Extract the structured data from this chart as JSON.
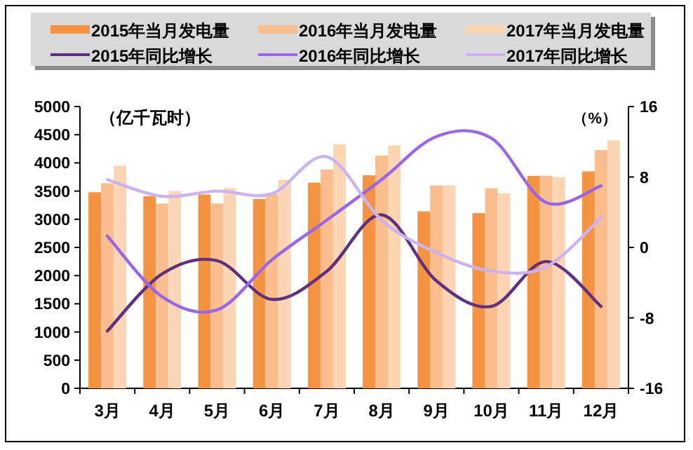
{
  "chart_data": {
    "type": "bar",
    "ylabel": "（亿千瓦时）",
    "y2label": "（%）",
    "legend": "top",
    "categories": [
      "3月",
      "4月",
      "5月",
      "6月",
      "7月",
      "8月",
      "9月",
      "10月",
      "11月",
      "12月"
    ],
    "ylim": [
      0,
      5000
    ],
    "yticks": [
      0,
      500,
      1000,
      1500,
      2000,
      2500,
      3000,
      3500,
      4000,
      4500,
      5000
    ],
    "y2lim": [
      -16,
      16
    ],
    "y2ticks": [
      -16,
      -8,
      0,
      8,
      16
    ],
    "series": [
      {
        "name": "2015年当月发电量",
        "color": "#f49342",
        "values": [
          3480,
          3410,
          3440,
          3360,
          3650,
          3780,
          3140,
          3110,
          3770,
          3850
        ]
      },
      {
        "name": "2016年当月发电量",
        "color": "#fabd8d",
        "values": [
          3640,
          3280,
          3280,
          3450,
          3880,
          4130,
          3600,
          3550,
          3770,
          4230
        ]
      },
      {
        "name": "2017年当月发电量",
        "color": "#fcd5b5",
        "values": [
          3950,
          3500,
          3550,
          3700,
          4330,
          4310,
          3600,
          3460,
          3750,
          4400
        ]
      },
      {
        "name": "2015年同比增长",
        "type": "line",
        "axis": "y2",
        "color": "#60307f",
        "values": [
          -9.5,
          -3.0,
          -1.5,
          -5.9,
          -2.7,
          3.7,
          -3.8,
          -6.7,
          -1.6,
          -6.7
        ]
      },
      {
        "name": "2016年同比增长",
        "type": "line",
        "axis": "y2",
        "color": "#9966e6",
        "values": [
          1.3,
          -5.6,
          -7.1,
          -1.4,
          3.1,
          7.7,
          12.6,
          12.4,
          5.1,
          7.0
        ]
      },
      {
        "name": "2017年同比增长",
        "type": "line",
        "axis": "y2",
        "color": "#ccb3f0",
        "values": [
          7.7,
          5.8,
          6.4,
          6.1,
          10.3,
          3.1,
          -0.6,
          -2.7,
          -2.2,
          3.4
        ]
      }
    ]
  }
}
